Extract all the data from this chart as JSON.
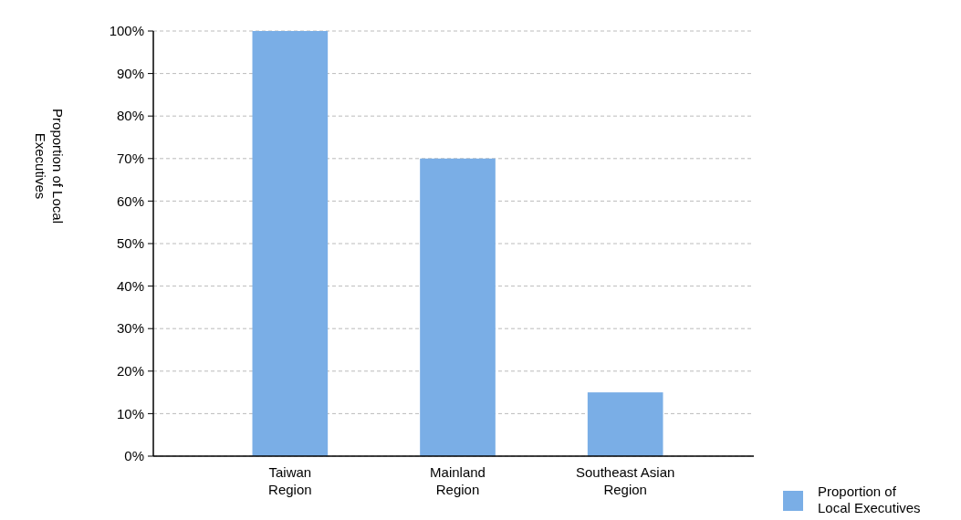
{
  "chart_data": {
    "type": "bar",
    "ylabel": "Proportion of Local Executives",
    "categories": [
      "Taiwan Region",
      "Mainland Region",
      "Southeast Asian Region"
    ],
    "series": [
      {
        "name": "Proportion of Local Executives",
        "color": "#7aaee6",
        "values": [
          100,
          70,
          15
        ]
      }
    ],
    "ylim": [
      0,
      100
    ],
    "yticks": [
      {
        "value": 0,
        "label": "0%"
      },
      {
        "value": 10,
        "label": "10%"
      },
      {
        "value": 20,
        "label": "20%"
      },
      {
        "value": 30,
        "label": "30%"
      },
      {
        "value": 40,
        "label": "40%"
      },
      {
        "value": 50,
        "label": "50%"
      },
      {
        "value": 60,
        "label": "60%"
      },
      {
        "value": 70,
        "label": "70%"
      },
      {
        "value": 80,
        "label": "80%"
      },
      {
        "value": 90,
        "label": "90%"
      },
      {
        "value": 100,
        "label": "100%"
      }
    ],
    "grid": "y",
    "legend": "bottom right"
  }
}
